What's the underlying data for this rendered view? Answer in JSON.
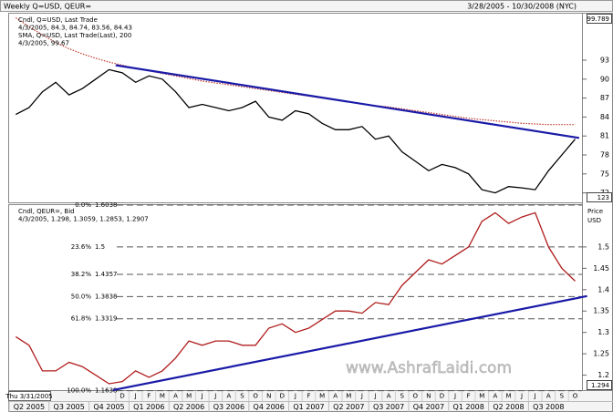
{
  "header": {
    "title": "Weekly Q=USD, QEUR=",
    "range": "3/28/2005 - 10/30/2008 (NYC)"
  },
  "x_axis": {
    "date_box": "Thu 3/31/2005",
    "categories": [
      null,
      null,
      null,
      null,
      null,
      null,
      null,
      null,
      "D",
      "J",
      "F",
      "M",
      "A",
      "M",
      "J",
      "J",
      "A",
      "S",
      "O",
      "N",
      "D",
      "J",
      "F",
      "M",
      "A",
      "M",
      "J",
      "J",
      "A",
      "S",
      "O",
      "N",
      "D",
      "J",
      "F",
      "M",
      "A",
      "M",
      "J",
      "J",
      "A",
      "S",
      "O"
    ],
    "quarters": [
      "Q2 2005",
      "Q3 2005",
      "Q4 2005",
      "Q1 2006",
      "Q2 2006",
      "Q3 2006",
      "Q4 2006",
      "Q1 2007",
      "Q2 2007",
      "Q3 2007",
      "Q4 2007",
      "Q1 2008",
      "Q2 2008",
      "Q3 2008"
    ]
  },
  "watermark": "www.AshrafLaidi.com",
  "chart_data": [
    {
      "type": "line",
      "legend": [
        "Cndl, Q=USD, Last Trade",
        "4/3/2005, 84.3, 84.74, 83.56, 84.43",
        "SMA, Q=USD, Last Trade(Last), 200",
        "4/3/2005, 99.67"
      ],
      "axis_boxes": [
        "99.789",
        "123"
      ],
      "series": [
        {
          "name": "Q=USD",
          "color": "#000000",
          "style": "solid",
          "values": [
            84.4,
            85.5,
            88,
            89.5,
            87.5,
            88.5,
            90,
            91.5,
            91,
            89.5,
            90.5,
            90,
            88,
            85.5,
            86,
            85.5,
            85,
            85.5,
            86.5,
            84,
            83.5,
            85,
            84.5,
            83,
            82,
            82,
            82.5,
            80.5,
            81,
            78.5,
            77,
            75.5,
            76.5,
            76,
            75,
            72.5,
            72,
            73,
            72.8,
            72.5,
            75.5,
            78,
            80.5
          ]
        },
        {
          "name": "SMA 200",
          "color": "#c0392b",
          "style": "dotted",
          "values": [
            99.7,
            98.3,
            97,
            95.8,
            94.8,
            94,
            93.3,
            92.7,
            92.2,
            91.7,
            91.3,
            90.9,
            90.5,
            90.1,
            89.7,
            89.4,
            89.1,
            88.8,
            88.5,
            88.2,
            87.9,
            87.6,
            87.3,
            87,
            86.7,
            86.4,
            86.1,
            85.8,
            85.6,
            85.3,
            85,
            84.7,
            84.4,
            84.1,
            83.8,
            83.6,
            83.4,
            83.2,
            83,
            82.9,
            82.8,
            82.8,
            82.8
          ]
        }
      ],
      "trendline": {
        "color": "#1a1aa8",
        "x": [
          7.5,
          42.3
        ],
        "values": [
          92.2,
          80.7
        ]
      },
      "ylim": [
        70.5,
        100.5
      ],
      "yticks": [
        72,
        75,
        78,
        81,
        84,
        87,
        90,
        93
      ]
    },
    {
      "type": "line",
      "legend": [
        "Cndl, QEUR=, Bid",
        "4/3/2005, 1.298, 1.3059, 1.2853, 1.2907"
      ],
      "axis_header": [
        "Price",
        "USD"
      ],
      "axis_boxes": [
        "1.294"
      ],
      "series": [
        {
          "name": "QEUR=",
          "color": "#b01c1c",
          "style": "solid",
          "values": [
            1.29,
            1.27,
            1.21,
            1.21,
            1.23,
            1.22,
            1.2,
            1.18,
            1.185,
            1.21,
            1.195,
            1.21,
            1.24,
            1.28,
            1.27,
            1.28,
            1.28,
            1.27,
            1.27,
            1.31,
            1.32,
            1.3,
            1.31,
            1.33,
            1.35,
            1.35,
            1.345,
            1.37,
            1.365,
            1.41,
            1.44,
            1.47,
            1.46,
            1.48,
            1.5,
            1.56,
            1.58,
            1.555,
            1.57,
            1.58,
            1.5,
            1.45,
            1.42
          ]
        }
      ],
      "trendline": {
        "color": "#1a1aa8",
        "x": [
          7.3,
          42.9
        ],
        "values": [
          1.165,
          1.385
        ]
      },
      "fib_levels": [
        {
          "pct": "0.0%",
          "value": 1.6038
        },
        {
          "pct": "23.6%",
          "value": 1.5
        },
        {
          "pct": "38.2%",
          "value": 1.4357
        },
        {
          "pct": "50.0%",
          "value": 1.3838
        },
        {
          "pct": "61.8%",
          "value": 1.3319
        },
        {
          "pct": "100.0%",
          "value": 1.1638
        }
      ],
      "ylim": [
        1.165,
        1.6
      ],
      "yticks": [
        1.2,
        1.25,
        1.3,
        1.35,
        1.4,
        1.45,
        1.5
      ]
    }
  ]
}
